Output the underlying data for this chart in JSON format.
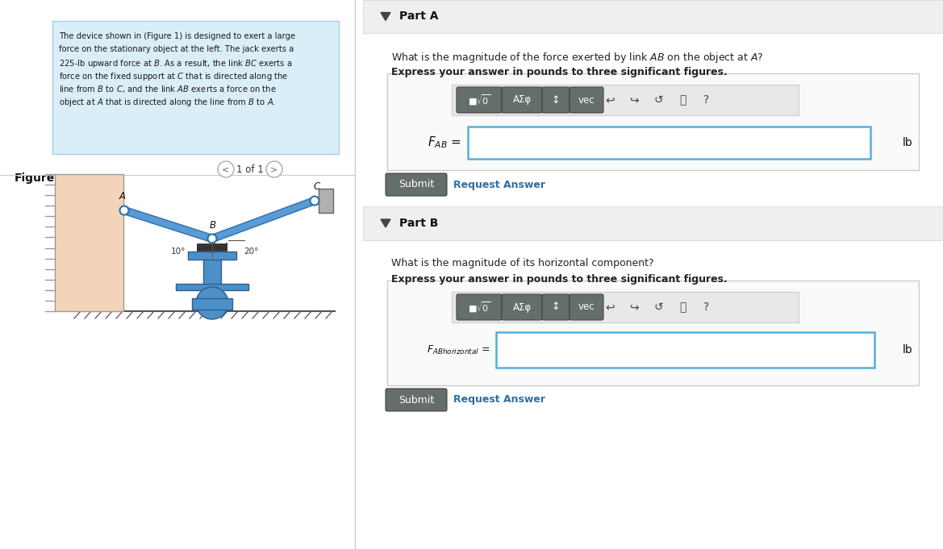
{
  "bg_color": "#ffffff",
  "problem_text_bg": "#daeef8",
  "problem_text_border": "#aacfe0",
  "divider_color": "#cccccc",
  "figure_label": "Figure",
  "figure_nav": "1 of 1",
  "part_a_label": "Part A",
  "part_b_label": "Part B",
  "part_a_q1": "What is the magnitude of the force exerted by link ",
  "part_a_q2": " on the object at ",
  "part_a_bold": "Express your answer in pounds to three significant figures.",
  "part_b_q1": "What is the magnitude of its horizontal component?",
  "part_b_bold": "Express your answer in pounds to three significant figures.",
  "unit_lb": "lb",
  "submit_text": "Submit",
  "request_answer_text": "Request Answer",
  "submit_color": "#3a85a8",
  "request_answer_color": "#2d6fa0",
  "input_box_border": "#5aaddc",
  "input_box_bg": "#ffffff",
  "toolbar_bg": "#eeeeee",
  "btn_color": "#666d6d",
  "part_header_bg": "#efefef",
  "part_header_border": "#dddddd",
  "outer_box_bg": "#ffffff",
  "outer_box_border": "#cccccc",
  "angle1": "10°",
  "angle2": "20°",
  "wall_color": "#f2d5b8",
  "wall_edge": "#999999",
  "link_color": "#5b9bd5",
  "link_edge": "#2a70b0",
  "spring_color": "#333333",
  "jack_color": "#4d8fc7",
  "jack_edge": "#2a6090",
  "ground_color": "#555555"
}
